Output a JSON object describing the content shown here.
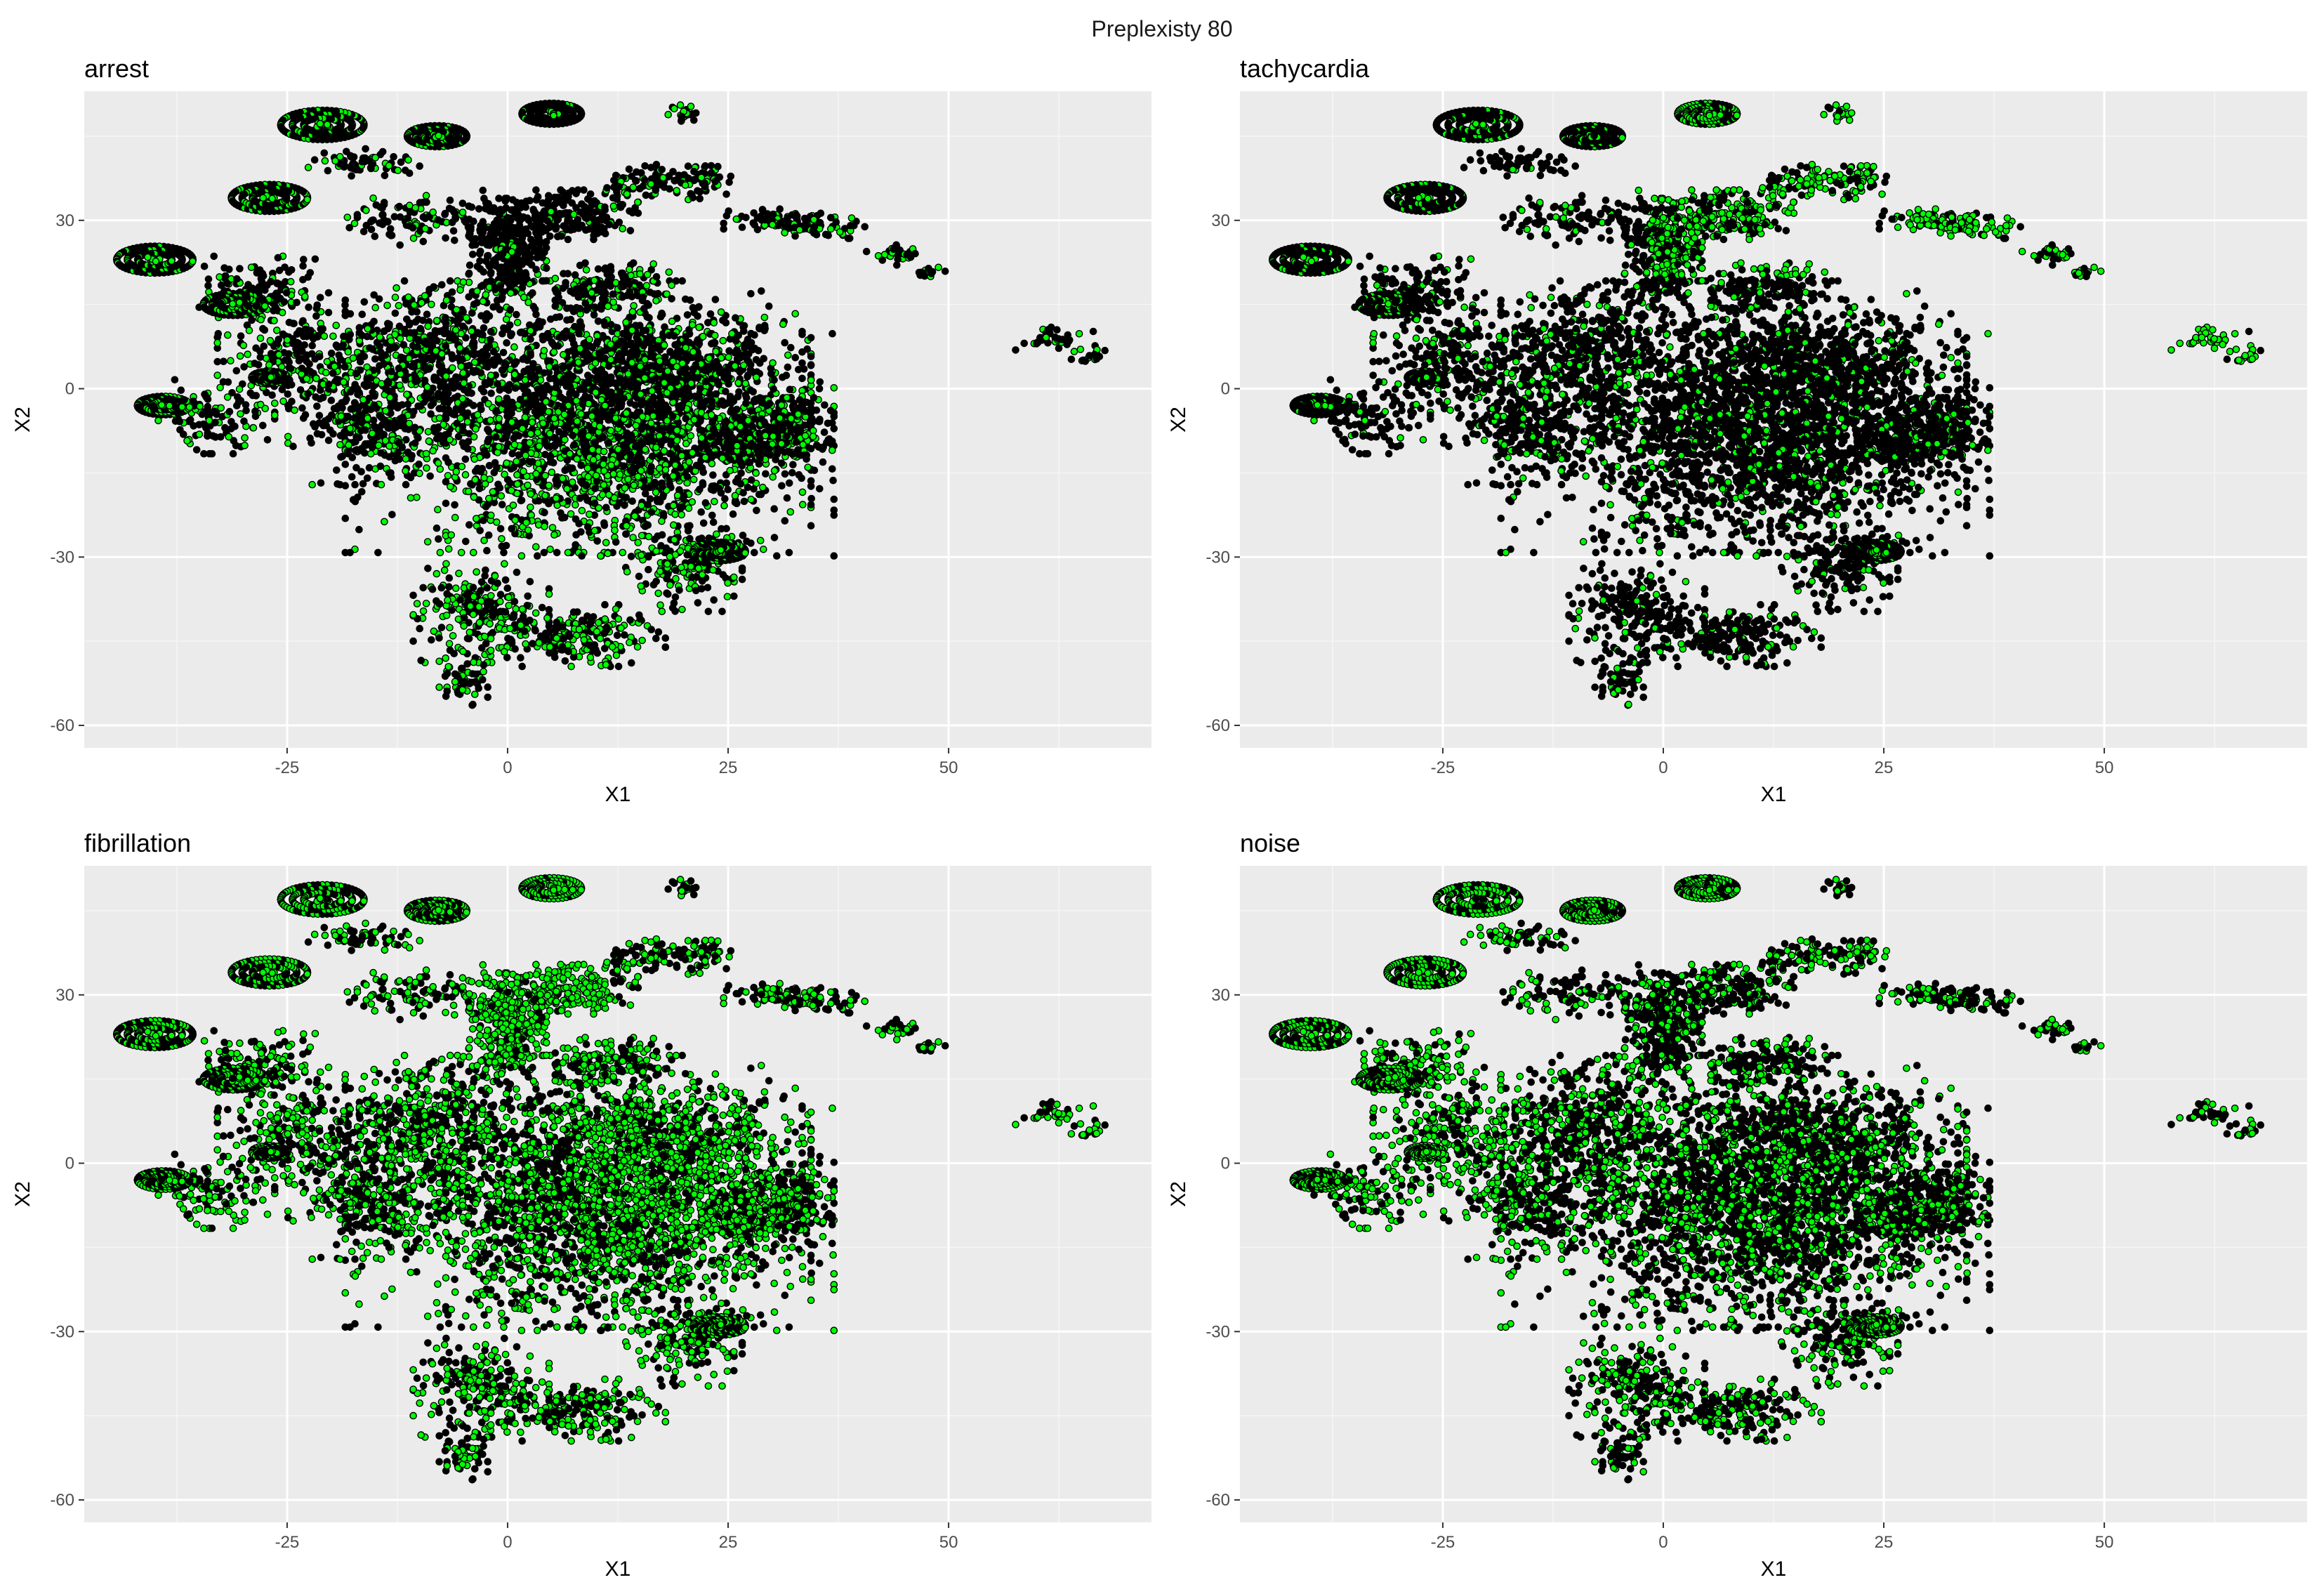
{
  "figure": {
    "title": "Preplexisty 80",
    "background": "#ffffff"
  },
  "colors": {
    "panel_bg": "#ebebeb",
    "grid_major": "#ffffff",
    "grid_minor": "#f5f5f5",
    "point_fill_true": "#00ff00",
    "point_fill_false": "#000000",
    "point_outline": "#000000"
  },
  "chart_data": [
    {
      "type": "scatter",
      "title": "arrest",
      "xlabel": "X1",
      "ylabel": "X2",
      "xlim": [
        -48,
        73
      ],
      "ylim": [
        -64,
        53
      ],
      "xticks": [
        -25,
        0,
        25,
        50
      ],
      "yticks": [
        -60,
        -30,
        0,
        30
      ],
      "grid": true,
      "green_share": 0.3
    },
    {
      "type": "scatter",
      "title": "tachycardia",
      "xlabel": "X1",
      "ylabel": "X2",
      "xlim": [
        -48,
        73
      ],
      "ylim": [
        -64,
        53
      ],
      "xticks": [
        -25,
        0,
        25,
        50
      ],
      "yticks": [
        -60,
        -30,
        0,
        30
      ],
      "grid": true,
      "green_share": 0.15
    },
    {
      "type": "scatter",
      "title": "fibrillation",
      "xlabel": "X1",
      "ylabel": "X2",
      "xlim": [
        -48,
        73
      ],
      "ylim": [
        -64,
        53
      ],
      "xticks": [
        -25,
        0,
        25,
        50
      ],
      "yticks": [
        -60,
        -30,
        0,
        30
      ],
      "grid": true,
      "green_share": 0.55
    },
    {
      "type": "scatter",
      "title": "noise",
      "xlabel": "X1",
      "ylabel": "X2",
      "xlim": [
        -48,
        73
      ],
      "ylim": [
        -64,
        53
      ],
      "xticks": [
        -25,
        0,
        25,
        50
      ],
      "yticks": [
        -60,
        -30,
        0,
        30
      ],
      "grid": true,
      "green_share": 0.4
    }
  ],
  "embedding": {
    "blobs": [
      {
        "x": 8,
        "y": -5,
        "rx": 24,
        "ry": 22,
        "n": 1700
      },
      {
        "x": 15,
        "y": -10,
        "rx": 20,
        "ry": 18,
        "n": 900
      },
      {
        "x": 18,
        "y": 5,
        "rx": 14,
        "ry": 9,
        "n": 450
      },
      {
        "x": 28,
        "y": -8,
        "rx": 8,
        "ry": 6,
        "n": 260
      },
      {
        "x": 33,
        "y": -6,
        "rx": 3,
        "ry": 4,
        "n": 70
      },
      {
        "x": 0,
        "y": 24,
        "rx": 4,
        "ry": 9,
        "n": 320
      },
      {
        "x": 6,
        "y": 31,
        "rx": 8,
        "ry": 4,
        "n": 220
      },
      {
        "x": -8,
        "y": 8,
        "rx": 8,
        "ry": 10,
        "n": 300
      },
      {
        "x": -15,
        "y": -5,
        "rx": 9,
        "ry": 11,
        "n": 330
      },
      {
        "x": -23,
        "y": 5,
        "rx": 9,
        "ry": 9,
        "n": 240
      },
      {
        "x": -28,
        "y": 17,
        "rx": 7,
        "ry": 6,
        "n": 140
      },
      {
        "x": -33,
        "y": -5,
        "rx": 6,
        "ry": 6,
        "n": 120
      },
      {
        "x": -3,
        "y": -40,
        "rx": 7,
        "ry": 8,
        "n": 230
      },
      {
        "x": -5,
        "y": -52,
        "rx": 2.5,
        "ry": 4,
        "n": 60
      },
      {
        "x": 8,
        "y": -44,
        "rx": 9,
        "ry": 5,
        "n": 200
      },
      {
        "x": 20,
        "y": -32,
        "rx": 6,
        "ry": 7,
        "n": 150
      },
      {
        "x": 12,
        "y": 18,
        "rx": 6,
        "ry": 4,
        "n": 130
      },
      {
        "x": 16,
        "y": 37,
        "rx": 6,
        "ry": 3,
        "n": 80
      },
      {
        "x": -10,
        "y": 30,
        "rx": 8,
        "ry": 4,
        "n": 110
      },
      {
        "x": -16,
        "y": 40,
        "rx": 6,
        "ry": 2.5,
        "n": 60
      },
      {
        "x": 22,
        "y": 37,
        "rx": 3,
        "ry": 3,
        "n": 40
      },
      {
        "x": 30,
        "y": 30,
        "rx": 5,
        "ry": 2,
        "n": 70
      },
      {
        "x": 35,
        "y": 29,
        "rx": 5,
        "ry": 2,
        "n": 55
      },
      {
        "x": 44,
        "y": 24,
        "rx": 3,
        "ry": 2,
        "n": 28
      },
      {
        "x": 48,
        "y": 21,
        "rx": 1.5,
        "ry": 1.5,
        "n": 12
      },
      {
        "x": 20,
        "y": 49,
        "rx": 2,
        "ry": 1.5,
        "n": 20
      },
      {
        "x": 62,
        "y": 9,
        "rx": 4,
        "ry": 2,
        "n": 35
      },
      {
        "x": 66,
        "y": 6,
        "rx": 2,
        "ry": 1.5,
        "n": 15
      }
    ],
    "rings": [
      {
        "x": -21,
        "y": 47,
        "r": 3.5
      },
      {
        "x": -8,
        "y": 45,
        "r": 2.5
      },
      {
        "x": 5,
        "y": 49,
        "r": 2.5
      },
      {
        "x": -27,
        "y": 34,
        "r": 3.2
      },
      {
        "x": -40,
        "y": 23,
        "r": 3.2
      },
      {
        "x": -31,
        "y": 15,
        "r": 2.6
      },
      {
        "x": -39,
        "y": -3,
        "r": 2.2
      },
      {
        "x": 24,
        "y": -29,
        "r": 2.2
      },
      {
        "x": -27,
        "y": 2,
        "r": 1.5
      }
    ]
  }
}
